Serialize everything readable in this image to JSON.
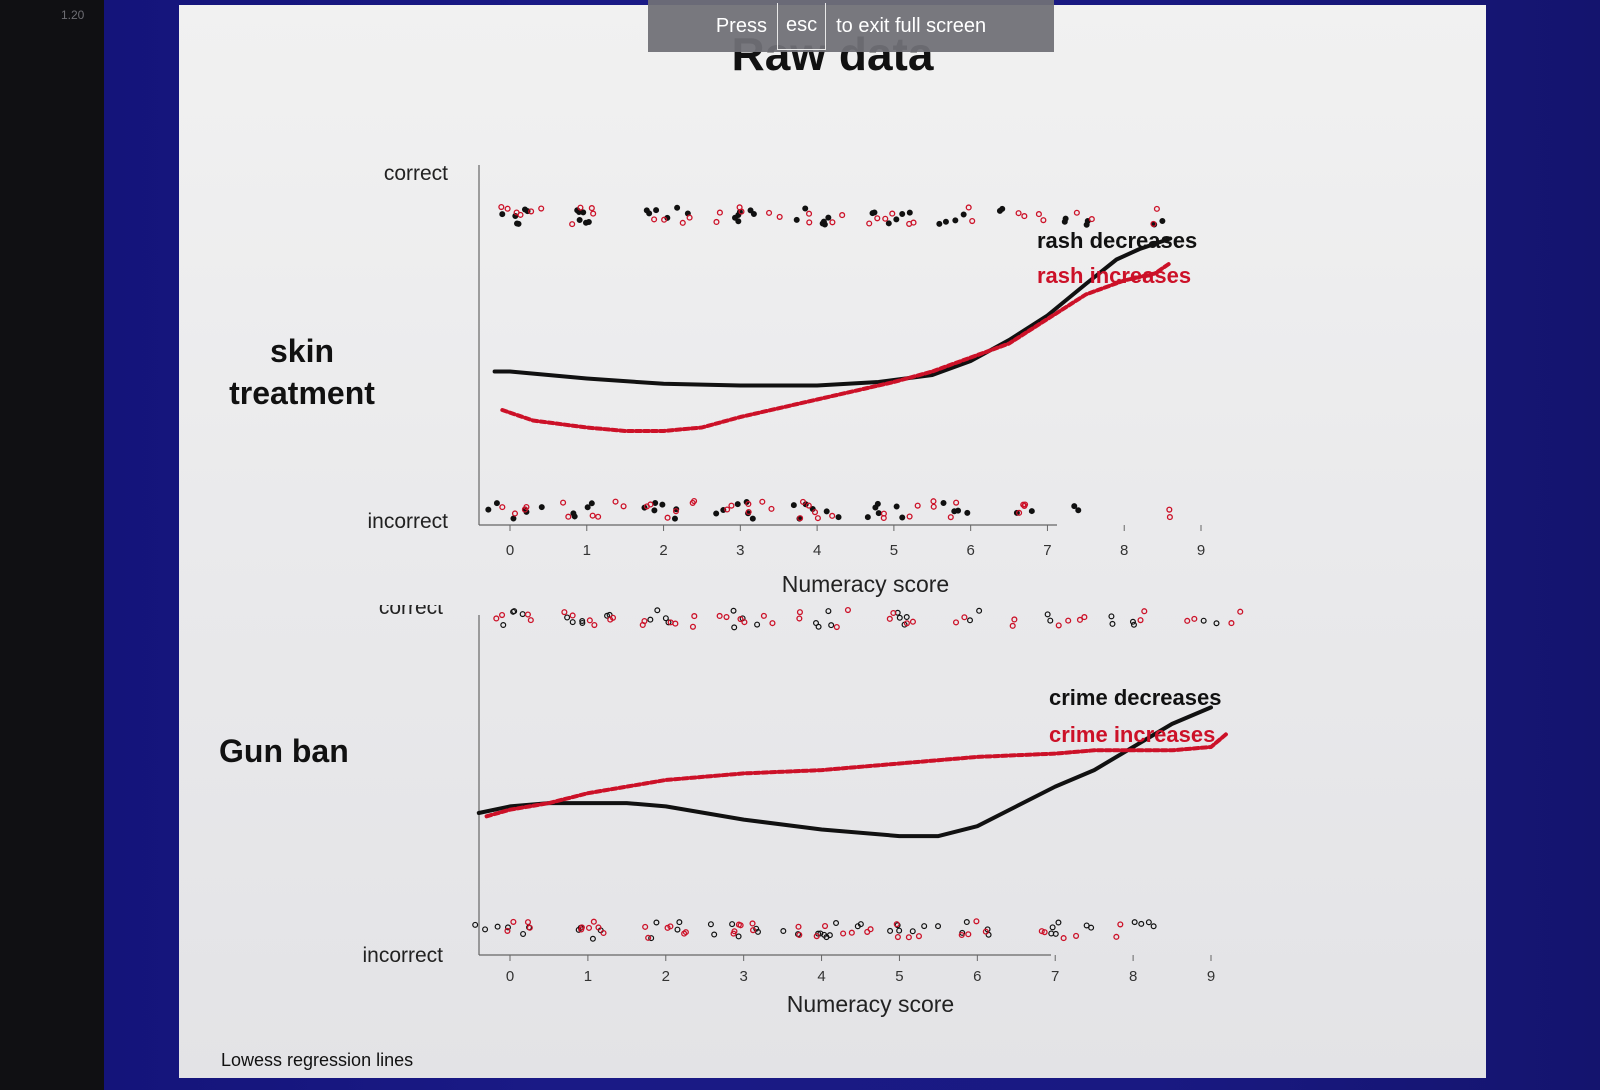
{
  "viewer": {
    "slide_timer": "1.20",
    "exit_banner": {
      "pre": "Press",
      "key": "esc",
      "post": "to exit full screen"
    }
  },
  "slide": {
    "title": "Raw data",
    "footnote": "Lowess regression lines",
    "colors": {
      "black_series": "#111111",
      "red_series": "#cc1128",
      "slide_bg": "#ececed",
      "stage_bg": "#1a1a86"
    }
  },
  "chart_data": [
    {
      "type": "scatter",
      "group_label": [
        "skin",
        "treatment"
      ],
      "title": "",
      "xlabel": "Numeracy score",
      "ylabel": "",
      "x_ticks": [
        "0",
        "1",
        "2",
        "3",
        "4",
        "5",
        "6",
        "7",
        "8",
        "9"
      ],
      "xlim": [
        -0.5,
        9.3
      ],
      "y_categories": [
        "incorrect",
        "correct"
      ],
      "ylim": [
        0,
        1
      ],
      "series": [
        {
          "name": "rash decreases",
          "color": "#111111",
          "line_style": "solid",
          "lowess": {
            "x": [
              -0.2,
              0,
              0.5,
              1,
              2,
              3,
              4,
              4.8,
              5.5,
              6,
              6.5,
              7,
              7.5,
              7.9,
              8.2,
              8.6
            ],
            "y": [
              0.41,
              0.41,
              0.4,
              0.39,
              0.375,
              0.37,
              0.37,
              0.38,
              0.4,
              0.44,
              0.5,
              0.57,
              0.66,
              0.73,
              0.76,
              0.79
            ]
          }
        },
        {
          "name": "rash increases",
          "color": "#cc1128",
          "line_style": "dashed",
          "lowess": {
            "x": [
              -0.1,
              0.3,
              1,
              1.5,
              2,
              2.5,
              3,
              4,
              5,
              5.5,
              6,
              6.5,
              7,
              7.5,
              8,
              8.4,
              8.6
            ],
            "y": [
              0.3,
              0.27,
              0.25,
              0.24,
              0.24,
              0.25,
              0.28,
              0.33,
              0.38,
              0.41,
              0.45,
              0.49,
              0.56,
              0.63,
              0.67,
              0.69,
              0.72
            ]
          }
        }
      ],
      "points": {
        "correct": {
          "black_x": [
            0,
            0.1,
            0.2,
            0.9,
            1,
            1.1,
            1.8,
            2,
            2.2,
            2.9,
            3,
            3.2,
            3.8,
            4,
            4.1,
            4.8,
            5,
            5.1,
            5.7,
            5.9,
            6.3,
            7.2,
            7.6,
            8.5
          ],
          "red_x": [
            -0.1,
            0.2,
            0.35,
            0.9,
            1.1,
            1.9,
            2.3,
            2.8,
            3.1,
            3.4,
            3.9,
            4.3,
            4.7,
            4.9,
            5.2,
            6.0,
            6.6,
            6.9,
            7.5,
            8.4
          ]
        },
        "incorrect": {
          "black_x": [
            -0.2,
            0.1,
            0.3,
            0.9,
            1.0,
            1.8,
            2.0,
            2.2,
            2.8,
            3.0,
            3.2,
            3.7,
            3.9,
            4.2,
            4.7,
            4.9,
            5.1,
            5.7,
            5.9,
            6.7,
            7.4
          ],
          "red_x": [
            0,
            0.2,
            0.8,
            1.1,
            1.4,
            1.9,
            2.1,
            2.4,
            2.9,
            3.1,
            3.3,
            3.8,
            4.0,
            4.1,
            4.8,
            5.2,
            5.5,
            5.8,
            6.6,
            6.8,
            8.6
          ]
        }
      }
    },
    {
      "type": "scatter",
      "group_label": [
        "Gun ban"
      ],
      "title": "",
      "xlabel": "Numeracy score",
      "ylabel": "",
      "x_ticks": [
        "0",
        "1",
        "2",
        "3",
        "4",
        "5",
        "6",
        "7",
        "8",
        "9"
      ],
      "xlim": [
        -0.5,
        9.5
      ],
      "y_categories": [
        "incorrect",
        "correct"
      ],
      "ylim": [
        0,
        1
      ],
      "series": [
        {
          "name": "crime decreases",
          "color": "#111111",
          "line_style": "solid",
          "lowess": {
            "x": [
              -0.4,
              0,
              0.5,
              1,
              1.5,
              2,
              3,
              4,
              5,
              5.5,
              6,
              6.5,
              7,
              7.5,
              8,
              8.5,
              9
            ],
            "y": [
              0.4,
              0.42,
              0.43,
              0.43,
              0.43,
              0.42,
              0.38,
              0.35,
              0.33,
              0.33,
              0.36,
              0.42,
              0.48,
              0.53,
              0.6,
              0.67,
              0.72
            ]
          }
        },
        {
          "name": "crime increases",
          "color": "#cc1128",
          "line_style": "dashed",
          "lowess": {
            "x": [
              -0.3,
              0,
              0.5,
              1,
              2,
              3,
              4,
              5,
              6,
              7,
              7.5,
              8,
              8.5,
              9,
              9.2
            ],
            "y": [
              0.39,
              0.41,
              0.43,
              0.46,
              0.5,
              0.52,
              0.53,
              0.55,
              0.57,
              0.58,
              0.59,
              0.59,
              0.59,
              0.6,
              0.64
            ]
          }
        }
      ],
      "points": {
        "correct": {
          "black_x": [
            0,
            0.1,
            0.8,
            1,
            1.2,
            1.9,
            2,
            2.9,
            3.1,
            4,
            4.1,
            5,
            5.1,
            6,
            6.9,
            7.8,
            8,
            9
          ],
          "red_x": [
            -0.2,
            0.2,
            0.7,
            1.1,
            1.4,
            1.7,
            2.1,
            2.4,
            2.7,
            3.0,
            3.3,
            3.8,
            4.3,
            4.9,
            5.2,
            5.8,
            6.4,
            7.1,
            7.4,
            8.1,
            8.8,
            9.3
          ]
        },
        "incorrect": {
          "black_x": [
            -0.4,
            -0.1,
            0.2,
            0.8,
            1.1,
            1.9,
            2.1,
            2.6,
            2.9,
            3.1,
            3.6,
            3.9,
            4.0,
            4.2,
            4.5,
            4.9,
            5.1,
            5.4,
            5.9,
            6.1,
            6.9,
            7.1,
            7.4,
            8.0,
            8.2
          ],
          "red_x": [
            0,
            0.3,
            0.9,
            1.0,
            1.2,
            1.8,
            2.0,
            2.3,
            2.8,
            3.0,
            3.2,
            3.7,
            4.0,
            4.3,
            4.7,
            5.0,
            5.2,
            5.8,
            6.0,
            6.8,
            7.2,
            7.9
          ]
        }
      }
    }
  ]
}
